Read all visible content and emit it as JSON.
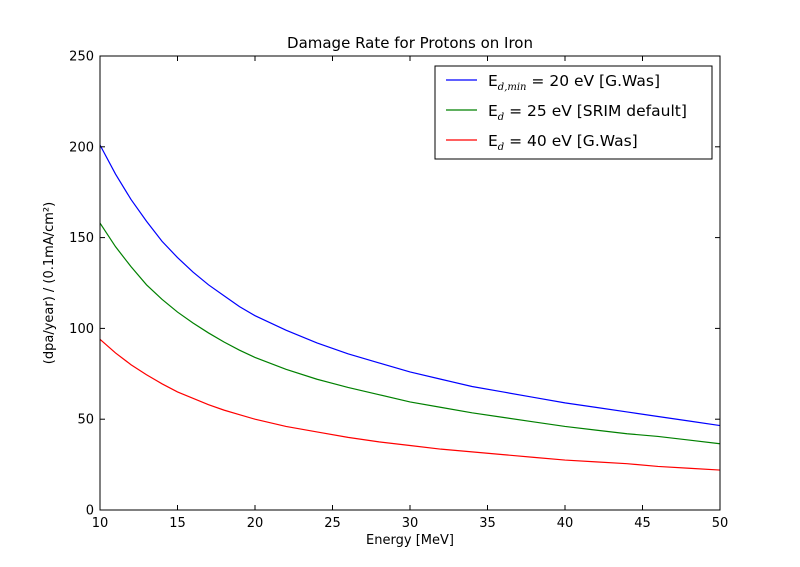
{
  "chart_data": {
    "type": "line",
    "title": "Damage Rate for Protons on Iron",
    "xlabel": "Energy [MeV]",
    "ylabel": "(dpa/year) / (0.1mA/cm²)",
    "xlim": [
      10,
      50
    ],
    "ylim": [
      0,
      250
    ],
    "xticks": [
      10,
      15,
      20,
      25,
      30,
      35,
      40,
      45,
      50
    ],
    "yticks": [
      0,
      50,
      100,
      150,
      200,
      250
    ],
    "grid": false,
    "legend_position": "top-right",
    "x": [
      10,
      11,
      12,
      13,
      14,
      15,
      16,
      17,
      18,
      19,
      20,
      22,
      24,
      26,
      28,
      30,
      32,
      34,
      36,
      38,
      40,
      42,
      44,
      46,
      48,
      50
    ],
    "series": [
      {
        "name": "E",
        "name_sub": "d,min",
        "name_rest": " = 20 eV [G.Was]",
        "color": "#0000ff",
        "values": [
          201,
          185,
          171,
          159,
          148,
          139,
          131,
          124,
          118,
          112,
          107,
          99,
          92,
          86,
          81,
          76,
          72,
          68,
          65,
          62,
          59,
          56.5,
          54,
          51.5,
          49,
          46.5
        ]
      },
      {
        "name": "E",
        "name_sub": "d",
        "name_rest": " = 25 eV [SRIM default]",
        "color": "#008000",
        "values": [
          158,
          145,
          134,
          124,
          116,
          109,
          103,
          97.5,
          92.5,
          88,
          84,
          77.5,
          72,
          67.5,
          63.5,
          59.5,
          56.5,
          53.5,
          51,
          48.5,
          46,
          44,
          42,
          40.5,
          38.5,
          36.5
        ]
      },
      {
        "name": "E",
        "name_sub": "d",
        "name_rest": " = 40 eV [G.Was]",
        "color": "#ff0000",
        "values": [
          94,
          86.5,
          80,
          74.5,
          69.5,
          65,
          61.5,
          58,
          55,
          52.5,
          50,
          46,
          43,
          40,
          37.5,
          35.5,
          33.5,
          32,
          30.5,
          29,
          27.5,
          26.5,
          25.5,
          24,
          23,
          22
        ]
      }
    ]
  }
}
